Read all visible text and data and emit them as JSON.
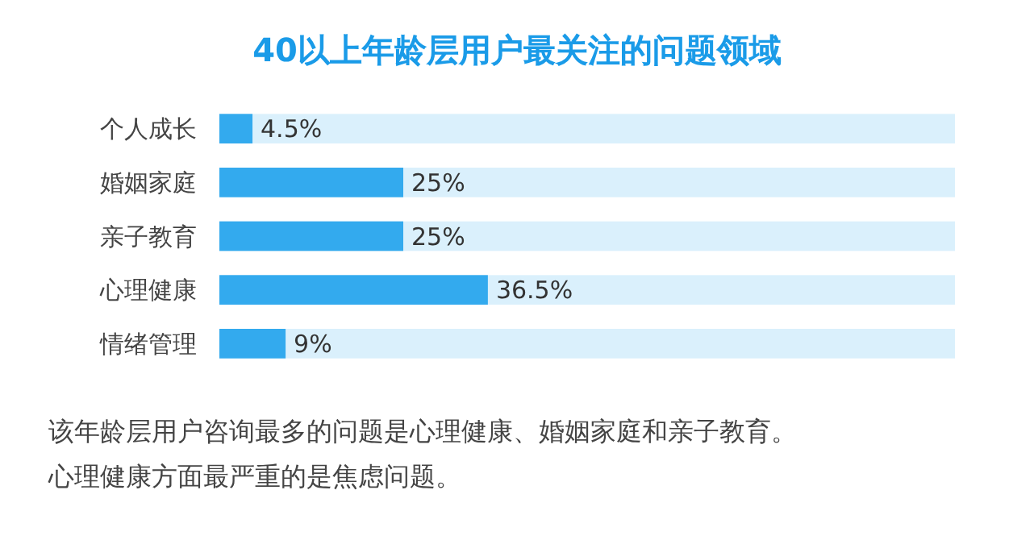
{
  "chart_data": {
    "type": "bar",
    "orientation": "horizontal",
    "title": "40以上年龄层用户最关注的问题领域",
    "categories": [
      "个人成长",
      "婚姻家庭",
      "亲子教育",
      "心理健康",
      "情绪管理"
    ],
    "values": [
      4.5,
      25,
      25,
      36.5,
      9
    ],
    "color": "#33aaee",
    "xlim": [
      0,
      100
    ],
    "data_labels": true,
    "value_labels": [
      "4.5%",
      "25%",
      "25%",
      "36.5%",
      "9%"
    ],
    "tick_labels": "y",
    "annotations": [
      "该年龄层用户咨询最多的问题是心理健康、婚姻家庭和亲子教育。",
      "心理健康方面最严重的是焦虑问题。"
    ]
  }
}
